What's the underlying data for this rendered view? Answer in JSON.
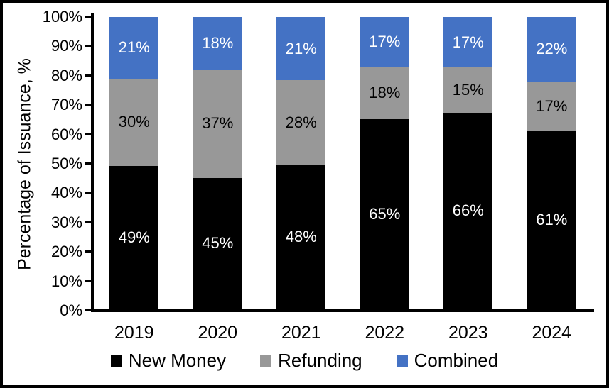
{
  "chart_data": {
    "type": "bar",
    "stacked": true,
    "title": "",
    "xlabel": "",
    "ylabel": "Percentage of Issuance, %",
    "ylim": [
      0,
      100
    ],
    "ytick_step": 10,
    "ytick_labels": [
      "0%",
      "10%",
      "20%",
      "30%",
      "40%",
      "50%",
      "60%",
      "70%",
      "80%",
      "90%",
      "100%"
    ],
    "categories": [
      "2019",
      "2020",
      "2021",
      "2022",
      "2023",
      "2024"
    ],
    "series": [
      {
        "name": "New Money",
        "color": "#000000",
        "label_color": "#FFFFFF",
        "values": [
          49,
          45,
          48,
          65,
          66,
          61
        ]
      },
      {
        "name": "Refunding",
        "color": "#989898",
        "label_color": "#000000",
        "values": [
          30,
          37,
          28,
          18,
          15,
          17
        ]
      },
      {
        "name": "Combined",
        "color": "#4472C4",
        "label_color": "#FFFFFF",
        "values": [
          21,
          18,
          21,
          17,
          17,
          22
        ]
      }
    ],
    "data_label_suffix": "%",
    "legend_position": "bottom",
    "grid": false,
    "colors": {
      "frame": "#000000",
      "background": "#FFFFFF",
      "axis": "#000000"
    }
  }
}
